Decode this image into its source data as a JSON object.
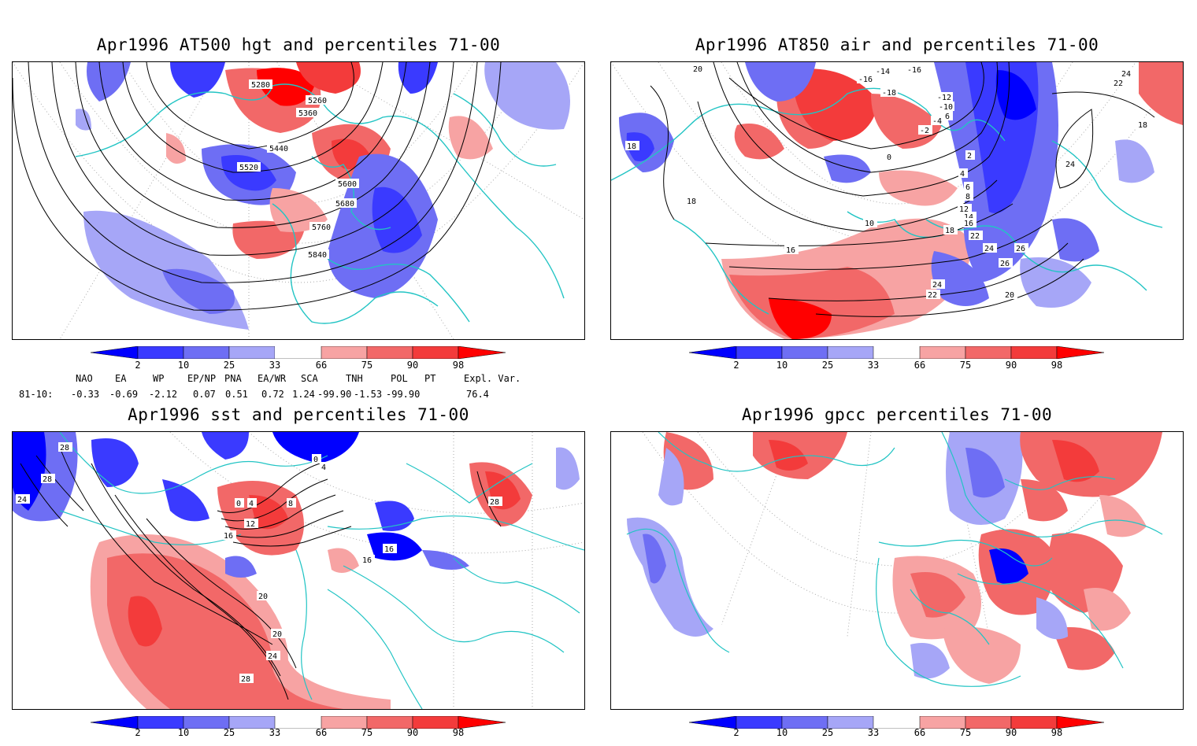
{
  "panels": [
    {
      "id": "tl",
      "title": "Apr1996 AT500 hgt and percentiles 71-00",
      "contour_labels": [
        "5280",
        "5260",
        "5360",
        "5440",
        "5520",
        "5600",
        "5680",
        "5760",
        "5840"
      ]
    },
    {
      "id": "tr",
      "title": "Apr1996 AT850 air and percentiles 71-00",
      "contour_labels": [
        "20",
        "-16",
        "-14",
        "-16",
        "-18",
        "-12",
        "-10",
        "-6",
        "-4",
        "-2",
        "0",
        "2",
        "4",
        "6",
        "8",
        "10",
        "12",
        "14",
        "16",
        "18",
        "18",
        "16",
        "16",
        "18",
        "20",
        "22",
        "22",
        "24",
        "24",
        "24",
        "26",
        "26",
        "20",
        "22",
        "24",
        "18"
      ]
    },
    {
      "id": "bl",
      "title": "Apr1996 sst and percentiles 71-00",
      "contour_labels": [
        "28",
        "28",
        "24",
        "0",
        "4",
        "8",
        "12",
        "16",
        "20",
        "20",
        "24",
        "28",
        "4",
        "0",
        "16",
        "16",
        "28"
      ]
    },
    {
      "id": "br",
      "title": "Apr1996 gpcc percentiles 71-00",
      "contour_labels": []
    }
  ],
  "colorbar": {
    "labels": [
      "2",
      "10",
      "25",
      "33",
      "66",
      "75",
      "90",
      "98"
    ],
    "colors": [
      "#0000ff",
      "#3a3aff",
      "#6e6ef4",
      "#a6a6f7",
      "#ffffff",
      "#f7a3a3",
      "#f26868",
      "#f33b3b",
      "#ff0000"
    ]
  },
  "indices": {
    "headers": [
      "NAO",
      "EA",
      "WP",
      "EP/NP",
      "PNA",
      "EA/WR",
      "SCA",
      "TNH",
      "POL",
      "PT",
      "Expl. Var."
    ],
    "row_label": "81-10:",
    "values": [
      "-0.33",
      "-0.69",
      "-2.12",
      "0.07",
      "0.51",
      "0.72",
      "1.24",
      "-99.90",
      "-1.53",
      "-99.90",
      "76.4"
    ]
  },
  "colors": {
    "coast": "#22c4c4",
    "contour": "#000000",
    "grid": "#aaaaaa"
  }
}
